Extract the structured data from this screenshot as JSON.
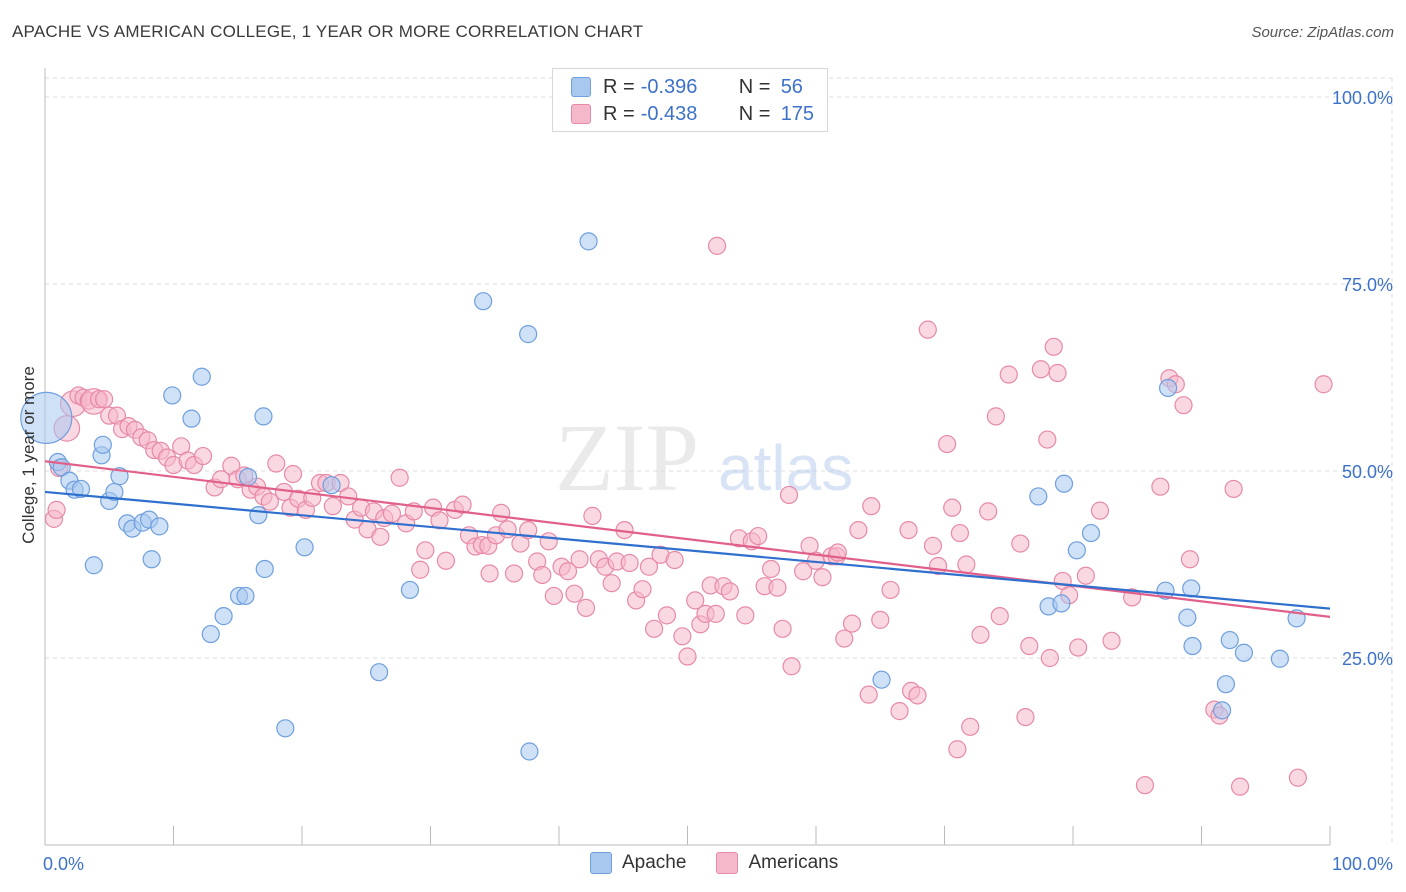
{
  "header": {
    "title": "APACHE VS AMERICAN COLLEGE, 1 YEAR OR MORE CORRELATION CHART",
    "source": "Source: ZipAtlas.com"
  },
  "legend": {
    "rows": [
      {
        "r_label": "R =",
        "r_value": "-0.396",
        "n_label": "N =",
        "n_value": "56"
      },
      {
        "r_label": "R =",
        "r_value": "-0.438",
        "n_label": "N =",
        "n_value": "175"
      }
    ]
  },
  "bottom_legend": {
    "items": [
      {
        "label": "Apache"
      },
      {
        "label": "Americans"
      }
    ]
  },
  "watermark": {
    "zip": "ZIP",
    "atlas": "atlas"
  },
  "colors": {
    "apache_fill": "#a8c8f0",
    "apache_stroke": "#6f9fdc",
    "apache_line": "#2f6fce",
    "americans_fill": "#f5b8cb",
    "americans_stroke": "#e68aa8",
    "americans_line": "#e0608a",
    "tick_text": "#3d72c9",
    "grid": "#dddddd"
  },
  "chart_data": {
    "type": "scatter",
    "title": "APACHE VS AMERICAN COLLEGE, 1 YEAR OR MORE CORRELATION CHART",
    "xlabel": "",
    "ylabel": "College, 1 year or more",
    "xlim": [
      0,
      100
    ],
    "ylim": [
      0,
      104
    ],
    "x_tick_labels": [
      {
        "value": 0,
        "label": "0.0%"
      },
      {
        "value": 100,
        "label": "100.0%"
      }
    ],
    "y_tick_labels": [
      {
        "value": 25,
        "label": "25.0%"
      },
      {
        "value": 50,
        "label": "50.0%"
      },
      {
        "value": 75,
        "label": "75.0%"
      },
      {
        "value": 100,
        "label": "100.0%"
      }
    ],
    "grid": true,
    "legend_position": "top-center",
    "series": [
      {
        "name": "Apache",
        "r": -0.396,
        "n": 56,
        "trend": {
          "x": [
            0,
            100
          ],
          "y": [
            47.2,
            31.6
          ]
        },
        "points": [
          [
            0.1,
            57.1,
            3
          ],
          [
            1.0,
            51.2,
            1
          ],
          [
            1.3,
            50.5,
            1
          ],
          [
            1.9,
            48.7,
            1
          ],
          [
            2.3,
            47.5,
            1
          ],
          [
            2.8,
            47.6,
            1
          ],
          [
            3.8,
            37.4,
            1
          ],
          [
            4.4,
            52.1,
            1
          ],
          [
            4.5,
            53.5,
            1
          ],
          [
            5.0,
            46.0,
            1
          ],
          [
            5.4,
            47.2,
            1
          ],
          [
            5.8,
            49.3,
            1
          ],
          [
            6.4,
            43.0,
            1
          ],
          [
            6.8,
            42.3,
            1
          ],
          [
            7.6,
            43.1,
            1
          ],
          [
            8.1,
            43.5,
            1
          ],
          [
            8.3,
            38.2,
            1
          ],
          [
            8.9,
            42.6,
            1
          ],
          [
            9.9,
            60.1,
            1
          ],
          [
            11.4,
            57.0,
            1
          ],
          [
            12.2,
            62.6,
            1
          ],
          [
            12.9,
            28.2,
            1
          ],
          [
            13.9,
            30.6,
            1
          ],
          [
            15.1,
            33.3,
            1
          ],
          [
            15.6,
            33.3,
            1
          ],
          [
            15.8,
            49.2,
            1
          ],
          [
            16.6,
            44.1,
            1
          ],
          [
            17.0,
            57.3,
            1
          ],
          [
            17.1,
            36.9,
            1
          ],
          [
            18.7,
            15.6,
            1
          ],
          [
            20.2,
            39.8,
            1
          ],
          [
            22.3,
            48.1,
            1
          ],
          [
            26.0,
            23.1,
            1
          ],
          [
            28.4,
            34.1,
            1
          ],
          [
            34.1,
            72.7,
            1
          ],
          [
            37.6,
            68.3,
            1
          ],
          [
            37.7,
            12.5,
            1
          ],
          [
            42.3,
            80.7,
            1
          ],
          [
            65.1,
            22.1,
            1
          ],
          [
            77.3,
            46.6,
            1
          ],
          [
            78.1,
            31.9,
            1
          ],
          [
            79.1,
            32.3,
            1
          ],
          [
            79.3,
            48.3,
            1
          ],
          [
            80.3,
            39.4,
            1
          ],
          [
            81.4,
            41.7,
            1
          ],
          [
            87.2,
            34.0,
            1
          ],
          [
            87.4,
            61.1,
            1
          ],
          [
            88.9,
            30.4,
            1
          ],
          [
            89.2,
            34.3,
            1
          ],
          [
            89.3,
            26.6,
            1
          ],
          [
            91.6,
            18.0,
            1
          ],
          [
            91.9,
            21.5,
            1
          ],
          [
            92.2,
            27.4,
            1
          ],
          [
            93.3,
            25.7,
            1
          ],
          [
            96.1,
            24.9,
            1
          ],
          [
            97.4,
            30.3,
            1
          ]
        ]
      },
      {
        "name": "Americans",
        "r": -0.438,
        "n": 175,
        "trend": {
          "x": [
            0,
            100
          ],
          "y": [
            51.3,
            30.5
          ]
        },
        "points": [
          [
            0.7,
            43.6,
            1
          ],
          [
            0.9,
            44.8,
            1
          ],
          [
            1.1,
            50.4,
            1
          ],
          [
            1.7,
            55.7,
            1.5
          ],
          [
            2.2,
            59.0,
            1.5
          ],
          [
            2.6,
            60.1,
            1
          ],
          [
            3.0,
            59.8,
            1
          ],
          [
            3.4,
            59.4,
            1
          ],
          [
            3.8,
            59.3,
            1.5
          ],
          [
            4.2,
            59.6,
            1
          ],
          [
            4.6,
            59.6,
            1
          ],
          [
            5.0,
            57.4,
            1
          ],
          [
            5.6,
            57.4,
            1
          ],
          [
            6.0,
            55.6,
            1
          ],
          [
            6.5,
            56.0,
            1
          ],
          [
            7.0,
            55.5,
            1
          ],
          [
            7.5,
            54.5,
            1
          ],
          [
            8.0,
            54.1,
            1
          ],
          [
            8.5,
            52.8,
            1
          ],
          [
            9.0,
            52.7,
            1
          ],
          [
            9.5,
            51.8,
            1
          ],
          [
            10.0,
            50.8,
            1
          ],
          [
            10.6,
            53.3,
            1
          ],
          [
            11.1,
            51.4,
            1
          ],
          [
            11.6,
            50.8,
            1
          ],
          [
            12.3,
            52.0,
            1
          ],
          [
            13.2,
            47.8,
            1
          ],
          [
            13.7,
            48.9,
            1
          ],
          [
            14.5,
            50.7,
            1
          ],
          [
            15.0,
            48.9,
            1
          ],
          [
            15.5,
            49.4,
            1
          ],
          [
            16.0,
            47.5,
            1
          ],
          [
            16.5,
            47.9,
            1
          ],
          [
            17.0,
            46.6,
            1
          ],
          [
            17.5,
            45.9,
            1
          ],
          [
            18.0,
            51.0,
            1
          ],
          [
            18.6,
            47.2,
            1
          ],
          [
            19.1,
            45.1,
            1
          ],
          [
            19.3,
            49.6,
            1
          ],
          [
            19.7,
            46.3,
            1
          ],
          [
            20.3,
            44.8,
            1
          ],
          [
            20.8,
            46.4,
            1
          ],
          [
            21.4,
            48.4,
            1
          ],
          [
            21.9,
            48.4,
            1
          ],
          [
            22.4,
            45.3,
            1
          ],
          [
            23.0,
            48.4,
            1
          ],
          [
            23.6,
            46.6,
            1
          ],
          [
            24.1,
            43.5,
            1
          ],
          [
            24.6,
            45.1,
            1
          ],
          [
            25.1,
            42.2,
            1
          ],
          [
            25.6,
            44.6,
            1
          ],
          [
            26.1,
            41.2,
            1
          ],
          [
            26.4,
            43.7,
            1
          ],
          [
            27.0,
            44.3,
            1
          ],
          [
            27.6,
            49.1,
            1
          ],
          [
            28.1,
            43.0,
            1
          ],
          [
            28.7,
            44.6,
            1
          ],
          [
            29.2,
            36.8,
            1
          ],
          [
            29.6,
            39.4,
            1
          ],
          [
            30.2,
            45.1,
            1
          ],
          [
            30.7,
            43.4,
            1
          ],
          [
            31.2,
            38.0,
            1
          ],
          [
            31.9,
            44.8,
            1
          ],
          [
            32.5,
            45.5,
            1
          ],
          [
            33.0,
            41.4,
            1
          ],
          [
            33.5,
            39.9,
            1
          ],
          [
            34.0,
            40.1,
            1
          ],
          [
            34.5,
            40.0,
            1
          ],
          [
            34.6,
            36.3,
            1
          ],
          [
            35.1,
            41.4,
            1
          ],
          [
            35.5,
            44.4,
            1
          ],
          [
            36.0,
            42.2,
            1
          ],
          [
            36.5,
            36.3,
            1
          ],
          [
            37.0,
            40.3,
            1
          ],
          [
            37.6,
            42.1,
            1
          ],
          [
            38.3,
            37.9,
            1
          ],
          [
            38.7,
            36.1,
            1
          ],
          [
            39.2,
            40.6,
            1
          ],
          [
            39.6,
            33.3,
            1
          ],
          [
            40.2,
            37.2,
            1
          ],
          [
            40.7,
            36.6,
            1
          ],
          [
            41.2,
            33.6,
            1
          ],
          [
            41.6,
            38.2,
            1
          ],
          [
            42.1,
            31.7,
            1
          ],
          [
            42.6,
            44.0,
            1
          ],
          [
            43.1,
            38.2,
            1
          ],
          [
            43.6,
            37.2,
            1
          ],
          [
            44.1,
            35.0,
            1
          ],
          [
            44.5,
            37.9,
            1
          ],
          [
            45.1,
            42.1,
            1
          ],
          [
            45.5,
            37.7,
            1
          ],
          [
            46.0,
            32.7,
            1
          ],
          [
            46.5,
            34.2,
            1
          ],
          [
            47.0,
            37.2,
            1
          ],
          [
            47.4,
            28.9,
            1
          ],
          [
            47.9,
            38.8,
            1
          ],
          [
            48.4,
            30.7,
            1
          ],
          [
            49.0,
            38.1,
            1
          ],
          [
            49.6,
            27.9,
            1
          ],
          [
            50.0,
            25.2,
            1
          ],
          [
            50.6,
            32.7,
            1
          ],
          [
            51.0,
            29.5,
            1
          ],
          [
            51.4,
            30.9,
            1
          ],
          [
            51.8,
            34.7,
            1
          ],
          [
            52.2,
            30.9,
            1
          ],
          [
            52.3,
            80.1,
            1
          ],
          [
            52.8,
            34.6,
            1
          ],
          [
            53.3,
            33.9,
            1
          ],
          [
            54.0,
            41.0,
            1
          ],
          [
            54.5,
            30.7,
            1
          ],
          [
            55.0,
            40.6,
            1
          ],
          [
            55.5,
            41.3,
            1
          ],
          [
            56.0,
            34.6,
            1
          ],
          [
            56.5,
            36.9,
            1
          ],
          [
            57.0,
            34.4,
            1
          ],
          [
            57.4,
            28.9,
            1
          ],
          [
            57.9,
            46.8,
            1
          ],
          [
            58.1,
            23.9,
            1
          ],
          [
            59.0,
            36.6,
            1
          ],
          [
            59.5,
            40.0,
            1
          ],
          [
            60.0,
            38.0,
            1
          ],
          [
            60.5,
            35.8,
            1
          ],
          [
            61.2,
            38.6,
            1
          ],
          [
            61.6,
            38.6,
            1
          ],
          [
            61.7,
            39.1,
            1
          ],
          [
            62.2,
            27.6,
            1
          ],
          [
            62.8,
            29.6,
            1
          ],
          [
            63.3,
            42.1,
            1
          ],
          [
            64.1,
            20.1,
            1
          ],
          [
            64.3,
            45.3,
            1
          ],
          [
            65.0,
            30.1,
            1
          ],
          [
            65.8,
            34.1,
            1
          ],
          [
            66.5,
            17.9,
            1
          ],
          [
            67.2,
            42.1,
            1
          ],
          [
            67.4,
            20.6,
            1
          ],
          [
            67.9,
            20.0,
            1
          ],
          [
            68.7,
            68.9,
            1
          ],
          [
            69.1,
            40.0,
            1
          ],
          [
            69.5,
            37.3,
            1
          ],
          [
            70.2,
            53.6,
            1
          ],
          [
            70.6,
            45.1,
            1
          ],
          [
            71.0,
            12.8,
            1
          ],
          [
            71.2,
            41.7,
            1
          ],
          [
            71.7,
            37.5,
            1
          ],
          [
            72.0,
            15.8,
            1
          ],
          [
            72.8,
            28.1,
            1
          ],
          [
            73.4,
            44.6,
            1
          ],
          [
            74.0,
            57.3,
            1
          ],
          [
            74.3,
            30.6,
            1
          ],
          [
            75.0,
            62.9,
            1
          ],
          [
            75.9,
            40.3,
            1
          ],
          [
            76.3,
            17.1,
            1
          ],
          [
            76.6,
            26.6,
            1
          ],
          [
            77.5,
            63.6,
            1
          ],
          [
            78.0,
            54.2,
            1
          ],
          [
            78.2,
            25.0,
            1
          ],
          [
            78.5,
            66.6,
            1
          ],
          [
            78.8,
            63.1,
            1
          ],
          [
            79.2,
            35.3,
            1
          ],
          [
            79.7,
            33.4,
            1
          ],
          [
            80.4,
            26.4,
            1
          ],
          [
            81.0,
            36.0,
            1
          ],
          [
            82.1,
            44.7,
            1
          ],
          [
            83.0,
            27.3,
            1
          ],
          [
            84.6,
            33.1,
            1
          ],
          [
            85.6,
            8.0,
            1
          ],
          [
            86.8,
            47.9,
            1
          ],
          [
            87.5,
            62.4,
            1
          ],
          [
            88.0,
            61.6,
            1
          ],
          [
            88.6,
            58.8,
            1
          ],
          [
            89.1,
            38.2,
            1
          ],
          [
            91.0,
            18.1,
            1
          ],
          [
            91.4,
            17.3,
            1
          ],
          [
            92.5,
            47.6,
            1
          ],
          [
            93.0,
            7.8,
            1
          ],
          [
            97.5,
            9.0,
            1
          ],
          [
            99.5,
            61.6,
            1
          ]
        ]
      }
    ]
  }
}
